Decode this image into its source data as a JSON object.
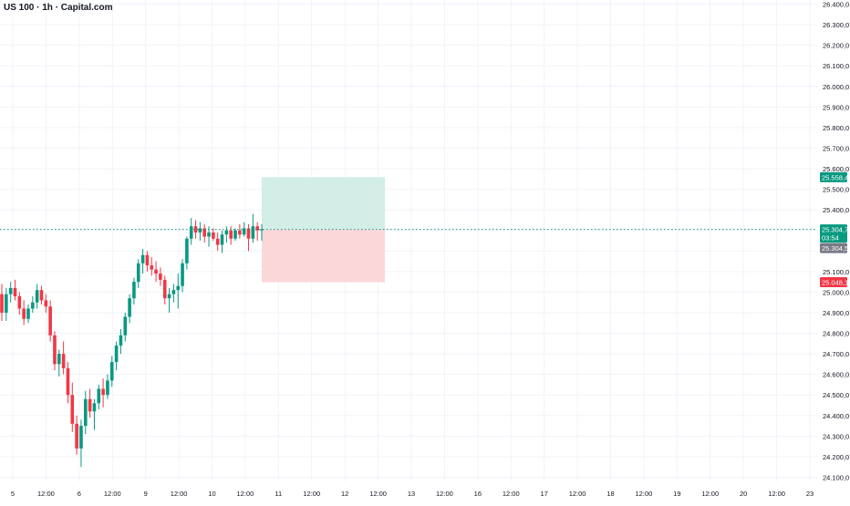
{
  "chart_title": "US 100 · 1h · Capital.com",
  "colors": {
    "up": "#089981",
    "down": "#f23645",
    "grid": "#f0f3fa",
    "text": "#131722",
    "last_price": "#089981",
    "target_fill": "#d3ede7",
    "stop_fill": "#fcd7da",
    "bid_badge": "#787b86"
  },
  "price_axis": {
    "ticks": [
      "26.400,0",
      "26.300,0",
      "26.200,0",
      "26.100,0",
      "26.000,0",
      "25.900,0",
      "25.800,0",
      "25.700,0",
      "25.600,0",
      "25.500,0",
      "25.400,0",
      "25.100,0",
      "25.000,0",
      "24.900,0",
      "24.800,0",
      "24.700,0",
      "24.600,0",
      "24.500,0",
      "24.400,0",
      "24.300,0",
      "24.200,0",
      "24.100,0"
    ],
    "badges": {
      "target": "25.558,4",
      "last": "25.304,7",
      "countdown": "03:54",
      "bid": "25.304,5",
      "stop": "25.048,1"
    }
  },
  "time_axis": {
    "labels": [
      "5",
      "12:00",
      "6",
      "12:00",
      "9",
      "12:00",
      "10",
      "12:00",
      "11",
      "12:00",
      "12",
      "12:00",
      "13",
      "12:00",
      "16",
      "12:00",
      "17",
      "12:00",
      "18",
      "12:00",
      "19",
      "12:00",
      "20",
      "12:00",
      "23"
    ]
  },
  "chart_data": {
    "type": "candlestick",
    "symbol": "US 100",
    "interval": "1h",
    "source": "Capital.com",
    "ylim": [
      24080,
      26420
    ],
    "last_price": 25304.7,
    "position": {
      "side": "long",
      "entry": 25304.7,
      "target": 25558.4,
      "stop": 25048.1
    },
    "candles": [
      [
        24990,
        25040,
        24860,
        24900
      ],
      [
        24900,
        25020,
        24860,
        24990
      ],
      [
        24990,
        25050,
        24950,
        25020
      ],
      [
        25020,
        25060,
        24960,
        24980
      ],
      [
        24980,
        25000,
        24890,
        24920
      ],
      [
        24920,
        24960,
        24840,
        24870
      ],
      [
        24870,
        24940,
        24850,
        24920
      ],
      [
        24920,
        24980,
        24900,
        24950
      ],
      [
        24950,
        25040,
        24920,
        25010
      ],
      [
        25010,
        25030,
        24940,
        24960
      ],
      [
        24960,
        24990,
        24900,
        24930
      ],
      [
        24930,
        24960,
        24760,
        24790
      ],
      [
        24790,
        24810,
        24620,
        24650
      ],
      [
        24650,
        24720,
        24590,
        24700
      ],
      [
        24700,
        24760,
        24600,
        24630
      ],
      [
        24630,
        24660,
        24460,
        24500
      ],
      [
        24500,
        24560,
        24320,
        24360
      ],
      [
        24360,
        24400,
        24210,
        24240
      ],
      [
        24240,
        24380,
        24150,
        24350
      ],
      [
        24350,
        24520,
        24310,
        24480
      ],
      [
        24480,
        24530,
        24390,
        24420
      ],
      [
        24420,
        24480,
        24330,
        24460
      ],
      [
        24460,
        24550,
        24430,
        24530
      ],
      [
        24530,
        24580,
        24440,
        24500
      ],
      [
        24500,
        24600,
        24480,
        24570
      ],
      [
        24570,
        24690,
        24540,
        24660
      ],
      [
        24660,
        24760,
        24620,
        24740
      ],
      [
        24740,
        24820,
        24700,
        24790
      ],
      [
        24790,
        24900,
        24760,
        24880
      ],
      [
        24880,
        24990,
        24850,
        24970
      ],
      [
        24970,
        25070,
        24940,
        25050
      ],
      [
        25050,
        25160,
        25020,
        25140
      ],
      [
        25140,
        25210,
        25090,
        25180
      ],
      [
        25180,
        25200,
        25100,
        25130
      ],
      [
        25130,
        25170,
        25080,
        25110
      ],
      [
        25110,
        25150,
        25050,
        25090
      ],
      [
        25090,
        25120,
        25030,
        25060
      ],
      [
        25060,
        25080,
        24940,
        24970
      ],
      [
        24970,
        25020,
        24900,
        24990
      ],
      [
        24990,
        25040,
        24950,
        25010
      ],
      [
        25010,
        25090,
        24920,
        25030
      ],
      [
        25030,
        25160,
        25000,
        25140
      ],
      [
        25140,
        25270,
        25110,
        25260
      ],
      [
        25260,
        25360,
        25230,
        25320
      ],
      [
        25320,
        25350,
        25260,
        25290
      ],
      [
        25290,
        25340,
        25250,
        25310
      ],
      [
        25310,
        25330,
        25240,
        25270
      ],
      [
        25270,
        25320,
        25220,
        25290
      ],
      [
        25290,
        25310,
        25250,
        25260
      ],
      [
        25260,
        25290,
        25200,
        25230
      ],
      [
        25230,
        25300,
        25190,
        25280
      ],
      [
        25280,
        25320,
        25240,
        25300
      ],
      [
        25300,
        25320,
        25230,
        25260
      ],
      [
        25260,
        25310,
        25250,
        25300
      ],
      [
        25300,
        25330,
        25260,
        25280
      ],
      [
        25280,
        25340,
        25270,
        25310
      ],
      [
        25310,
        25330,
        25200,
        25260
      ],
      [
        25260,
        25380,
        25240,
        25320
      ],
      [
        25320,
        25340,
        25250,
        25300
      ],
      [
        25300,
        25330,
        25250,
        25304.7
      ]
    ]
  }
}
